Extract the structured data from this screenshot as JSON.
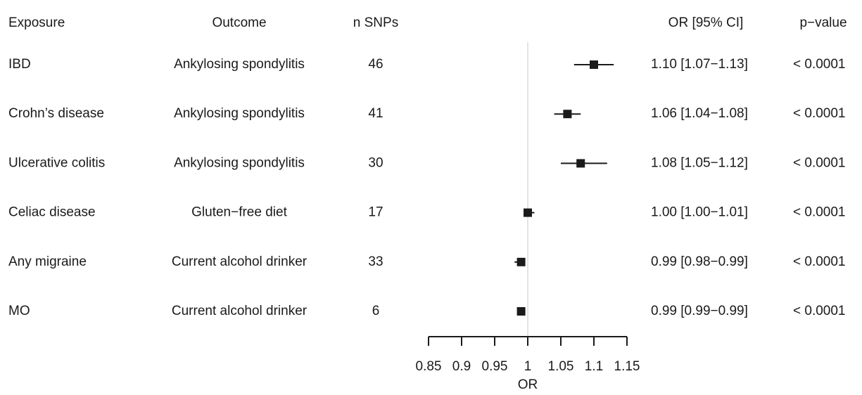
{
  "chart_data": {
    "type": "forest",
    "columns": [
      "Exposure",
      "Outcome",
      "n SNPs",
      "OR [95% CI]",
      "p−value"
    ],
    "exposures": [
      "IBD",
      "Crohn’s disease",
      "Ulcerative colitis",
      "Celiac disease",
      "Any migraine",
      "MO"
    ],
    "outcomes": [
      "Ankylosing spondylitis",
      "Ankylosing spondylitis",
      "Ankylosing spondylitis",
      "Gluten−free diet",
      "Current alcohol drinker",
      "Current alcohol drinker"
    ],
    "n_snps": [
      46,
      41,
      30,
      17,
      33,
      6
    ],
    "values": [
      1.1,
      1.06,
      1.08,
      1.0,
      0.99,
      0.99
    ],
    "ci_low": [
      1.07,
      1.04,
      1.05,
      1.0,
      0.98,
      0.99
    ],
    "ci_high": [
      1.13,
      1.08,
      1.12,
      1.01,
      0.99,
      0.99
    ],
    "value_labels": [
      "1.10 [1.07−1.13]",
      "1.06 [1.04−1.08]",
      "1.08 [1.05−1.12]",
      "1.00 [1.00−1.01]",
      "0.99 [0.98−0.99]",
      "0.99 [0.99−0.99]"
    ],
    "p_values": [
      "< 0.0001",
      "< 0.0001",
      "< 0.0001",
      "< 0.0001",
      "< 0.0001",
      "< 0.0001"
    ],
    "xlabel": "OR",
    "xlim": [
      0.85,
      1.15
    ],
    "xticks": [
      0.85,
      0.9,
      0.95,
      1,
      1.05,
      1.1,
      1.15
    ],
    "reference_line": 1,
    "color": "#1a1a1a"
  }
}
